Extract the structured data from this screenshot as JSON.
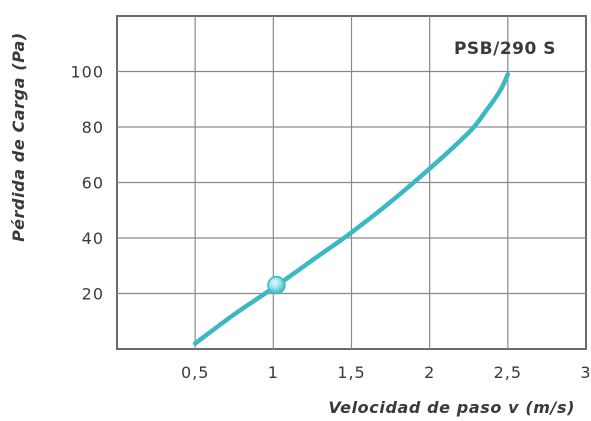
{
  "chart_data": {
    "type": "line",
    "title": "",
    "xlabel": "Velocidad de paso v (m/s)",
    "ylabel": "Pérdida de Carga (Pa)",
    "xlim": [
      0,
      3
    ],
    "ylim": [
      0,
      120
    ],
    "x_ticks": [
      0.5,
      1,
      1.5,
      2,
      2.5,
      3
    ],
    "x_tick_labels": [
      "0,5",
      "1",
      "1,5",
      "2",
      "2,5",
      "3"
    ],
    "y_ticks": [
      20,
      40,
      60,
      80,
      100
    ],
    "y_tick_labels": [
      "20",
      "40",
      "60",
      "80",
      "100"
    ],
    "grid": true,
    "series": [
      {
        "name": "PSB/290 S",
        "color": "#3cb8c4",
        "x": [
          0.5,
          0.75,
          1.0,
          1.25,
          1.5,
          1.75,
          2.0,
          2.25,
          2.35,
          2.45,
          2.5
        ],
        "y": [
          2,
          12.5,
          22,
          32,
          42,
          53,
          65,
          78,
          85,
          93,
          99
        ]
      }
    ],
    "highlight_point": {
      "x": 1.02,
      "y": 23
    }
  }
}
